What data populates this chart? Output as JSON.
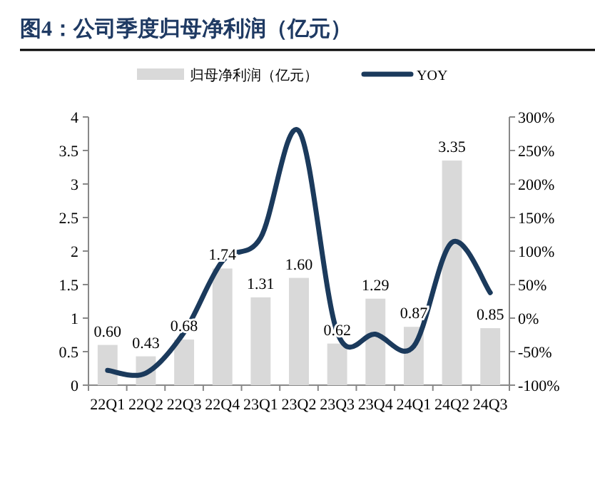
{
  "chart_data": {
    "type": "bar",
    "title": "图4：公司季度归母净利润（亿元）",
    "legend": "top",
    "grid": false,
    "categories": [
      "22Q1",
      "22Q2",
      "22Q3",
      "22Q4",
      "23Q1",
      "23Q2",
      "23Q3",
      "23Q4",
      "24Q1",
      "24Q2",
      "24Q3"
    ],
    "series": [
      {
        "name": "归母净利润（亿元）",
        "color": "#d9d9d9",
        "values": [
          0.6,
          0.43,
          0.68,
          1.74,
          1.31,
          1.6,
          0.62,
          1.29,
          0.87,
          3.35,
          0.85
        ],
        "value_labels": [
          "0.60",
          "0.43",
          "0.68",
          "1.74",
          "1.31",
          "1.60",
          "0.62",
          "1.29",
          "0.87",
          "3.35",
          "0.85"
        ]
      },
      {
        "name": "YOY",
        "type": "line",
        "axis": "y2",
        "color": "#1b3a5c",
        "values": [
          -78,
          -82,
          -21,
          85,
          120,
          279,
          -21,
          -24,
          -42,
          113,
          38
        ]
      }
    ],
    "ylim": [
      0,
      4
    ],
    "yticks": [
      0,
      0.5,
      1,
      1.5,
      2,
      2.5,
      3,
      3.5,
      4
    ],
    "y2lim": [
      -100,
      300
    ],
    "y2ticks": [
      {
        "value": -100,
        "label": "-100%"
      },
      {
        "value": -50,
        "label": "-50%"
      },
      {
        "value": 0,
        "label": "0%"
      },
      {
        "value": 50,
        "label": "50%"
      },
      {
        "value": 100,
        "label": "100%"
      },
      {
        "value": 150,
        "label": "150%"
      },
      {
        "value": 200,
        "label": "200%"
      },
      {
        "value": 250,
        "label": "250%"
      },
      {
        "value": 300,
        "label": "300%"
      }
    ]
  }
}
